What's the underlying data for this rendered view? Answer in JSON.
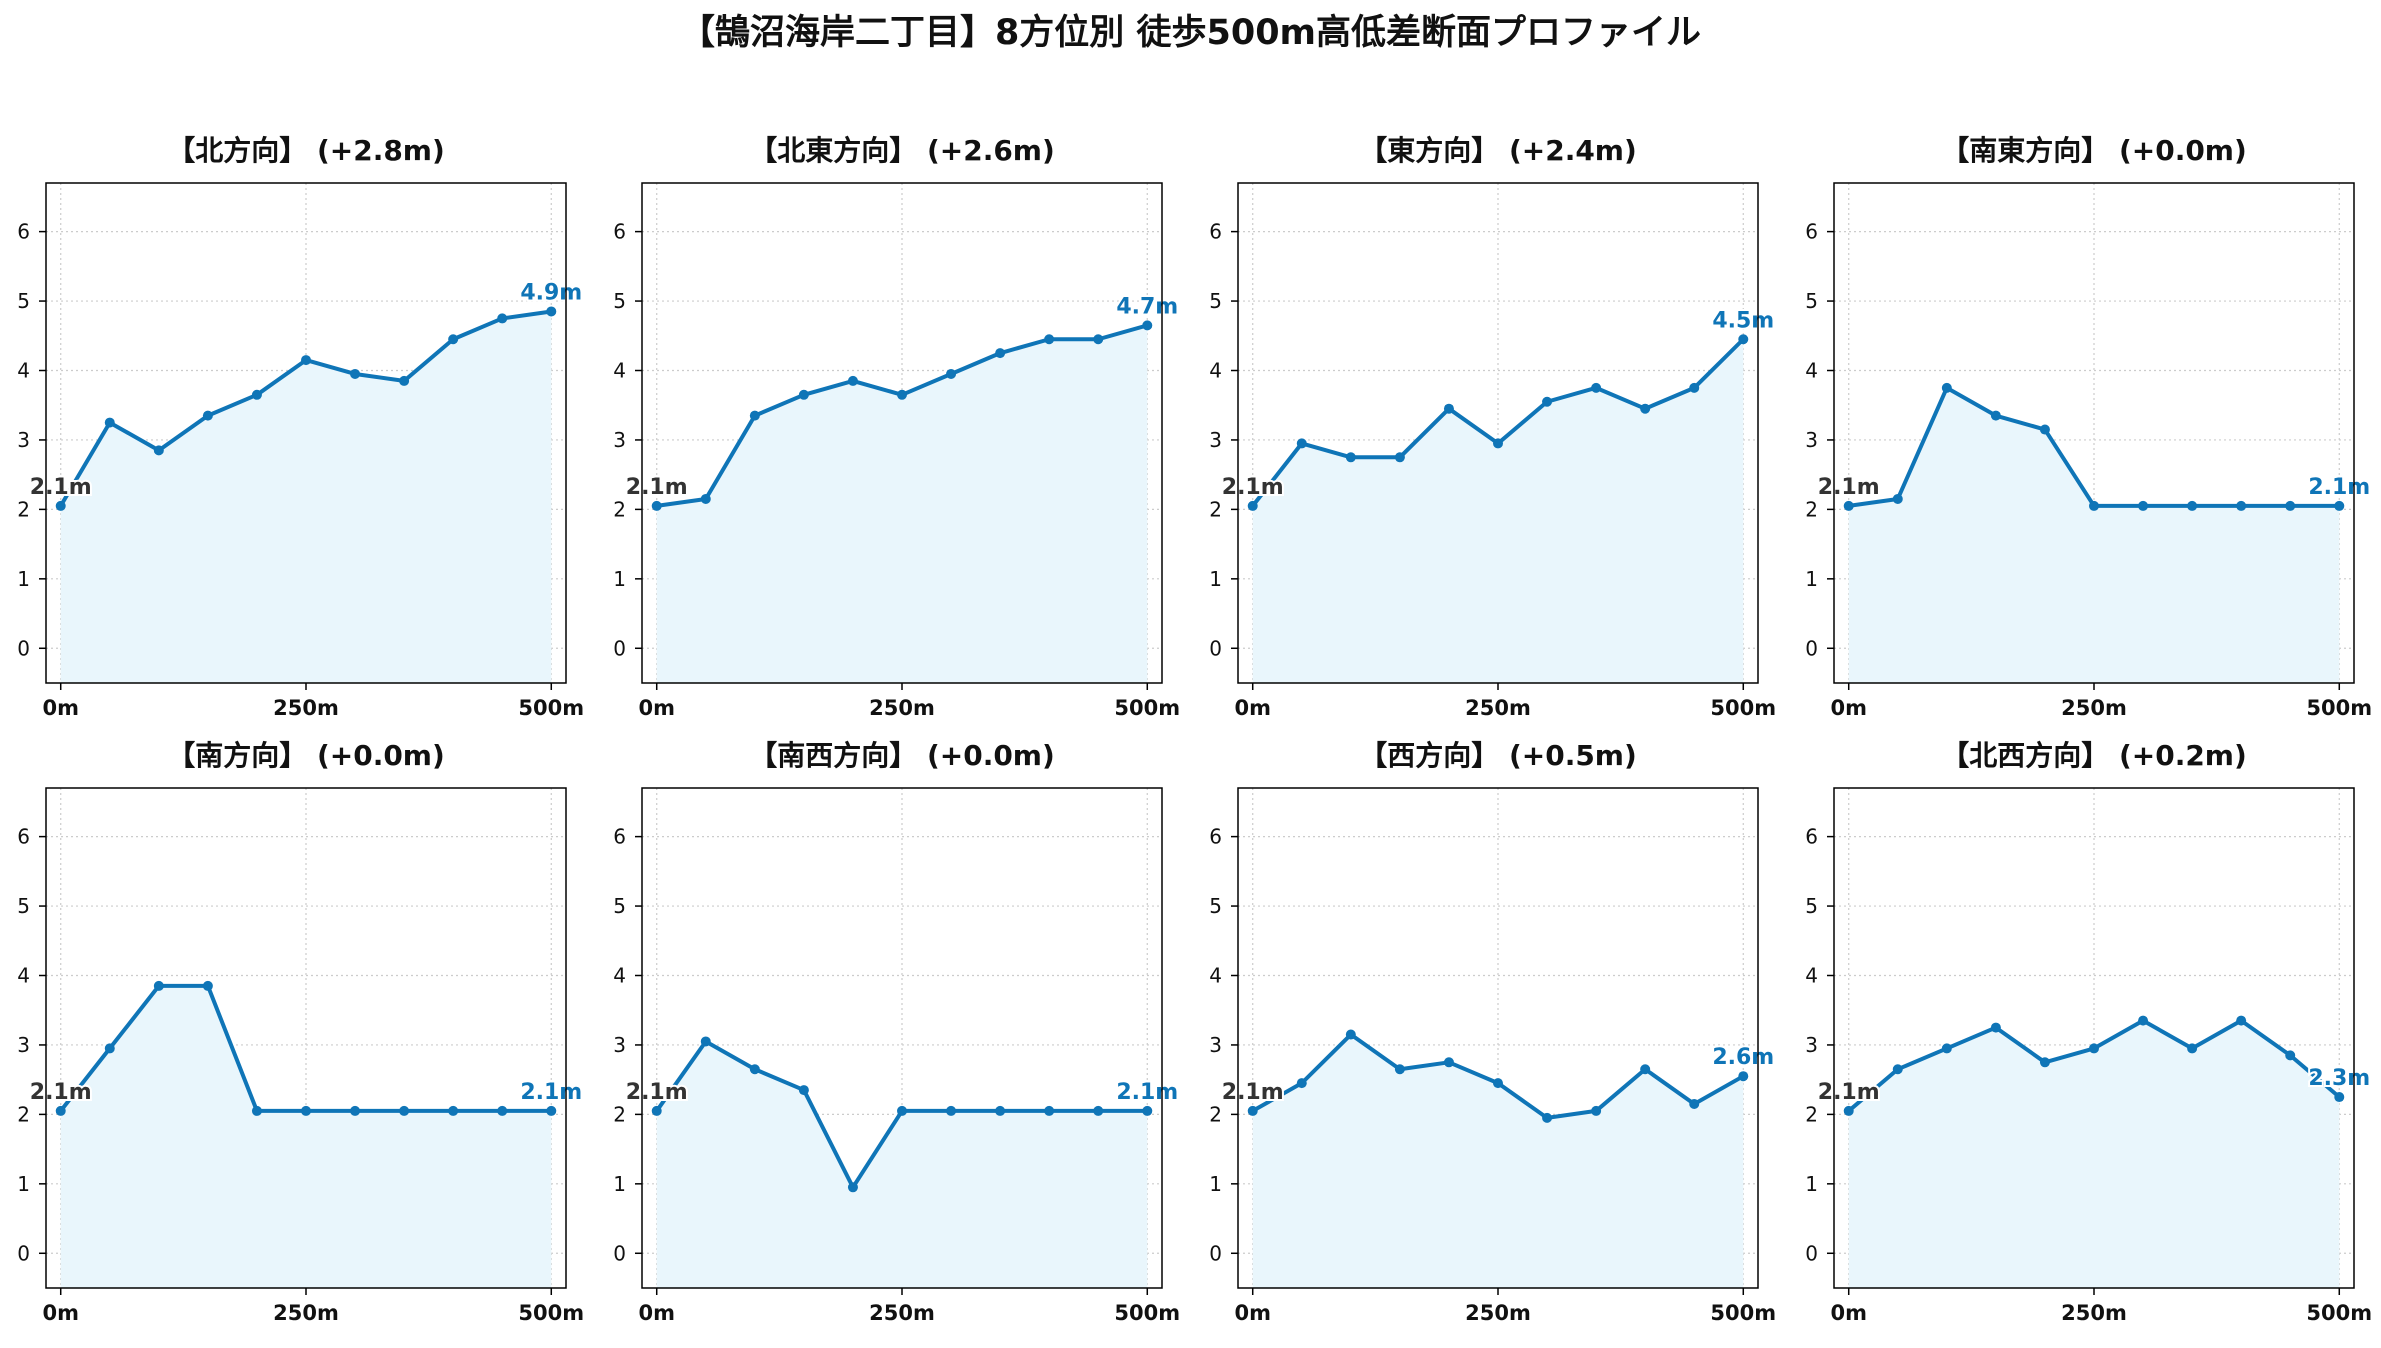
{
  "title": "【鵠沼海岸二丁目】8方位別 徒歩500m高低差断面プロファイル",
  "colors": {
    "line": "#0f75b7",
    "fill": "#e9f6fc",
    "start_label": "#333333",
    "end_label": "#0f75b7",
    "grid": "#cccccc"
  },
  "chart_data": [
    {
      "type": "line",
      "title": "【北方向】 (+2.8m)",
      "x": [
        0,
        50,
        100,
        150,
        200,
        250,
        300,
        350,
        400,
        450,
        500
      ],
      "y": [
        2.05,
        3.25,
        2.85,
        3.35,
        3.65,
        4.15,
        3.95,
        3.85,
        4.45,
        4.75,
        4.85
      ],
      "start_label": "2.1m",
      "end_label": "4.9m",
      "xticks": [
        "0m",
        "250m",
        "500m"
      ],
      "yticks": [
        0,
        1,
        2,
        3,
        4,
        5,
        6
      ],
      "xlim": [
        -15,
        515
      ],
      "ylim": [
        -0.5,
        6.7
      ],
      "grid": true
    },
    {
      "type": "line",
      "title": "【北東方向】 (+2.6m)",
      "x": [
        0,
        50,
        100,
        150,
        200,
        250,
        300,
        350,
        400,
        450,
        500
      ],
      "y": [
        2.05,
        2.15,
        3.35,
        3.65,
        3.85,
        3.65,
        3.95,
        4.25,
        4.45,
        4.45,
        4.65
      ],
      "start_label": "2.1m",
      "end_label": "4.7m",
      "xticks": [
        "0m",
        "250m",
        "500m"
      ],
      "yticks": [
        0,
        1,
        2,
        3,
        4,
        5,
        6
      ],
      "xlim": [
        -15,
        515
      ],
      "ylim": [
        -0.5,
        6.7
      ],
      "grid": true
    },
    {
      "type": "line",
      "title": "【東方向】 (+2.4m)",
      "x": [
        0,
        50,
        100,
        150,
        200,
        250,
        300,
        350,
        400,
        450,
        500
      ],
      "y": [
        2.05,
        2.95,
        2.75,
        2.75,
        3.45,
        2.95,
        3.55,
        3.75,
        3.45,
        3.75,
        4.45
      ],
      "start_label": "2.1m",
      "end_label": "4.5m",
      "xticks": [
        "0m",
        "250m",
        "500m"
      ],
      "yticks": [
        0,
        1,
        2,
        3,
        4,
        5,
        6
      ],
      "xlim": [
        -15,
        515
      ],
      "ylim": [
        -0.5,
        6.7
      ],
      "grid": true
    },
    {
      "type": "line",
      "title": "【南東方向】 (+0.0m)",
      "x": [
        0,
        50,
        100,
        150,
        200,
        250,
        300,
        350,
        400,
        450,
        500
      ],
      "y": [
        2.05,
        2.15,
        3.75,
        3.35,
        3.15,
        2.05,
        2.05,
        2.05,
        2.05,
        2.05,
        2.05
      ],
      "start_label": "2.1m",
      "end_label": "2.1m",
      "xticks": [
        "0m",
        "250m",
        "500m"
      ],
      "yticks": [
        0,
        1,
        2,
        3,
        4,
        5,
        6
      ],
      "xlim": [
        -15,
        515
      ],
      "ylim": [
        -0.5,
        6.7
      ],
      "grid": true
    },
    {
      "type": "line",
      "title": "【南方向】 (+0.0m)",
      "x": [
        0,
        50,
        100,
        150,
        200,
        250,
        300,
        350,
        400,
        450,
        500
      ],
      "y": [
        2.05,
        2.95,
        3.85,
        3.85,
        2.05,
        2.05,
        2.05,
        2.05,
        2.05,
        2.05,
        2.05
      ],
      "start_label": "2.1m",
      "end_label": "2.1m",
      "xticks": [
        "0m",
        "250m",
        "500m"
      ],
      "yticks": [
        0,
        1,
        2,
        3,
        4,
        5,
        6
      ],
      "xlim": [
        -15,
        515
      ],
      "ylim": [
        -0.5,
        6.7
      ],
      "grid": true
    },
    {
      "type": "line",
      "title": "【南西方向】 (+0.0m)",
      "x": [
        0,
        50,
        100,
        150,
        200,
        250,
        300,
        350,
        400,
        450,
        500
      ],
      "y": [
        2.05,
        3.05,
        2.65,
        2.35,
        0.95,
        2.05,
        2.05,
        2.05,
        2.05,
        2.05,
        2.05
      ],
      "start_label": "2.1m",
      "end_label": "2.1m",
      "xticks": [
        "0m",
        "250m",
        "500m"
      ],
      "yticks": [
        0,
        1,
        2,
        3,
        4,
        5,
        6
      ],
      "xlim": [
        -15,
        515
      ],
      "ylim": [
        -0.5,
        6.7
      ],
      "grid": true
    },
    {
      "type": "line",
      "title": "【西方向】 (+0.5m)",
      "x": [
        0,
        50,
        100,
        150,
        200,
        250,
        300,
        350,
        400,
        450,
        500
      ],
      "y": [
        2.05,
        2.45,
        3.15,
        2.65,
        2.75,
        2.45,
        1.95,
        2.05,
        2.65,
        2.15,
        2.55
      ],
      "start_label": "2.1m",
      "end_label": "2.6m",
      "xticks": [
        "0m",
        "250m",
        "500m"
      ],
      "yticks": [
        0,
        1,
        2,
        3,
        4,
        5,
        6
      ],
      "xlim": [
        -15,
        515
      ],
      "ylim": [
        -0.5,
        6.7
      ],
      "grid": true
    },
    {
      "type": "line",
      "title": "【北西方向】 (+0.2m)",
      "x": [
        0,
        50,
        100,
        150,
        200,
        250,
        300,
        350,
        400,
        450,
        500
      ],
      "y": [
        2.05,
        2.65,
        2.95,
        3.25,
        2.75,
        2.95,
        3.35,
        2.95,
        3.35,
        2.85,
        2.25
      ],
      "start_label": "2.1m",
      "end_label": "2.3m",
      "xticks": [
        "0m",
        "250m",
        "500m"
      ],
      "yticks": [
        0,
        1,
        2,
        3,
        4,
        5,
        6
      ],
      "xlim": [
        -15,
        515
      ],
      "ylim": [
        -0.5,
        6.7
      ],
      "grid": true
    }
  ]
}
